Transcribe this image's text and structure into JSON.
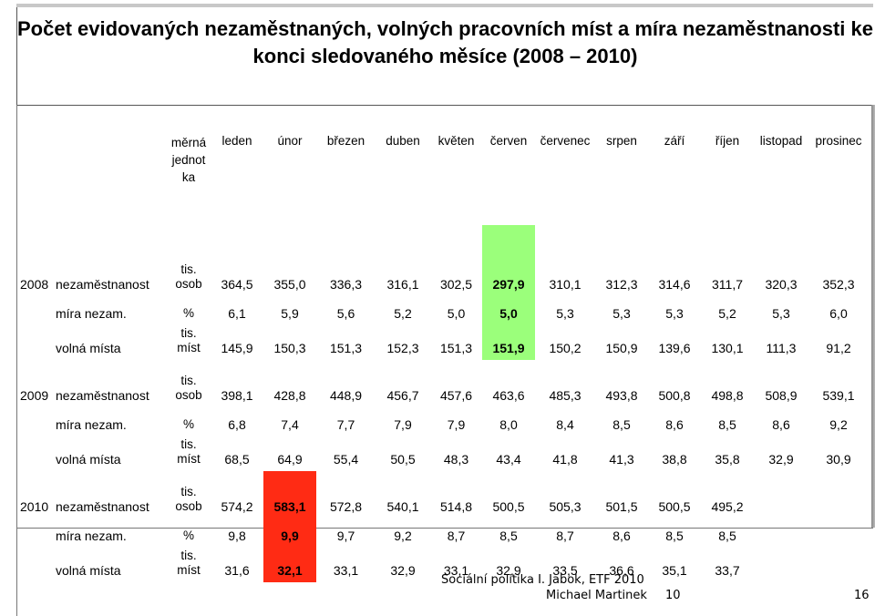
{
  "title": "Počet evidovaných nezaměstnaných, volných pracovních míst a míra nezaměstnanosti ke konci sledovaného měsíce (2008 – 2010)",
  "unit_header_lines": [
    "měrná",
    "jednot",
    "ka"
  ],
  "months": [
    "leden",
    "únor",
    "březen",
    "duben",
    "květen",
    "červen",
    "červenec",
    "srpen",
    "září",
    "říjen",
    "listopad",
    "prosinec"
  ],
  "rows": [
    {
      "year": "2008",
      "label": "nezaměstnanost",
      "unit": [
        "tis.",
        "osob"
      ],
      "values": [
        "364,5",
        "355,0",
        "336,3",
        "316,1",
        "302,5",
        "297,9",
        "310,1",
        "312,3",
        "314,6",
        "311,7",
        "320,3",
        "352,3"
      ]
    },
    {
      "year": "",
      "label": "míra nezam.",
      "unit": [
        "%"
      ],
      "values": [
        "6,1",
        "5,9",
        "5,6",
        "5,2",
        "5,0",
        "5,0",
        "5,3",
        "5,3",
        "5,3",
        "5,2",
        "5,3",
        "6,0"
      ]
    },
    {
      "year": "",
      "label": "volná místa",
      "unit": [
        "tis.",
        "míst"
      ],
      "values": [
        "145,9",
        "150,3",
        "151,3",
        "152,3",
        "151,3",
        "151,9",
        "150,2",
        "150,9",
        "139,6",
        "130,1",
        "111,3",
        "91,2"
      ]
    },
    {
      "year": "2009",
      "label": "nezaměstnanost",
      "unit": [
        "tis.",
        "osob"
      ],
      "values": [
        "398,1",
        "428,8",
        "448,9",
        "456,7",
        "457,6",
        "463,6",
        "485,3",
        "493,8",
        "500,8",
        "498,8",
        "508,9",
        "539,1"
      ]
    },
    {
      "year": "",
      "label": "míra nezam.",
      "unit": [
        "%"
      ],
      "values": [
        "6,8",
        "7,4",
        "7,7",
        "7,9",
        "7,9",
        "8,0",
        "8,4",
        "8,5",
        "8,6",
        "8,5",
        "8,6",
        "9,2"
      ]
    },
    {
      "year": "",
      "label": "volná místa",
      "unit": [
        "tis.",
        "míst"
      ],
      "values": [
        "68,5",
        "64,9",
        "55,4",
        "50,5",
        "48,3",
        "43,4",
        "41,8",
        "41,3",
        "38,8",
        "35,8",
        "32,9",
        "30,9"
      ]
    },
    {
      "year": "2010",
      "label": "nezaměstnanost",
      "unit": [
        "tis.",
        "osob"
      ],
      "values": [
        "574,2",
        "583,1",
        "572,8",
        "540,1",
        "514,8",
        "500,5",
        "505,3",
        "501,5",
        "500,5",
        "495,2",
        "",
        ""
      ]
    },
    {
      "year": "",
      "label": "míra nezam.",
      "unit": [
        "%"
      ],
      "values": [
        "9,8",
        "9,9",
        "9,7",
        "9,2",
        "8,7",
        "8,5",
        "8,7",
        "8,6",
        "8,5",
        "8,5",
        "",
        ""
      ]
    },
    {
      "year": "",
      "label": "volná místa",
      "unit": [
        "tis.",
        "míst"
      ],
      "values": [
        "31,6",
        "32,1",
        "33,1",
        "32,9",
        "33,1",
        "32,9",
        "33,5",
        "36,6",
        "35,1",
        "33,7",
        "",
        ""
      ]
    }
  ],
  "highlights": {
    "green": {
      "rows": [
        0,
        1,
        2
      ],
      "col": 5,
      "color": "#9bff7b"
    },
    "red": {
      "rows": [
        6,
        7,
        8
      ],
      "col": 1,
      "color": "#ff2b14"
    }
  },
  "footer": {
    "line1": "Sociální politika I. Jabok, ETF 2010",
    "author": "Michael Martinek",
    "num_left": "10",
    "page": "16"
  }
}
